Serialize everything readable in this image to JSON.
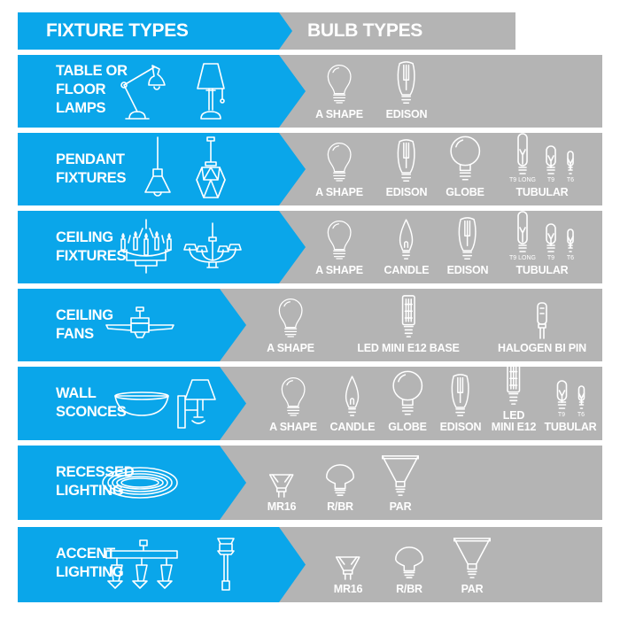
{
  "header": {
    "fixture_types": "FIXTURE TYPES",
    "bulb_types": "BULB TYPES"
  },
  "colors": {
    "fixture_blue": "#0aa6ea",
    "bulb_gray": "#b4b4b4"
  },
  "rows": [
    {
      "label": "TABLE OR FLOOR LAMPS",
      "fixture_icons": [
        "desk-lamp-icon",
        "floor-lamp-icon"
      ],
      "bulbs": [
        {
          "label": "A SHAPE",
          "icon": "a-shape"
        },
        {
          "label": "EDISON",
          "icon": "edison"
        }
      ]
    },
    {
      "label": "PENDANT FIXTURES",
      "fixture_icons": [
        "pendant-icon",
        "geometric-pendant-icon"
      ],
      "bulbs": [
        {
          "label": "A SHAPE",
          "icon": "a-shape"
        },
        {
          "label": "EDISON",
          "icon": "edison"
        },
        {
          "label": "GLOBE",
          "icon": "globe"
        },
        {
          "label": "TUBULAR",
          "icon": "tubular",
          "variants": [
            "T9 LONG",
            "T9",
            "T6"
          ]
        }
      ]
    },
    {
      "label": "CEILING FIXTURES",
      "fixture_icons": [
        "candle-chandelier-icon",
        "chandelier-icon"
      ],
      "bulbs": [
        {
          "label": "A SHAPE",
          "icon": "a-shape"
        },
        {
          "label": "CANDLE",
          "icon": "candle"
        },
        {
          "label": "EDISON",
          "icon": "edison"
        },
        {
          "label": "TUBULAR",
          "icon": "tubular",
          "variants": [
            "T9 LONG",
            "T9",
            "T6"
          ]
        }
      ]
    },
    {
      "label": "CEILING FANS",
      "fixture_icons": [
        "ceiling-fan-icon"
      ],
      "bulbs": [
        {
          "label": "A SHAPE",
          "icon": "a-shape"
        },
        {
          "label": "LED MINI E12 BASE",
          "icon": "led"
        },
        {
          "label": "HALOGEN BI PIN",
          "icon": "halogen"
        }
      ]
    },
    {
      "label": "WALL SCONCES",
      "fixture_icons": [
        "bowl-sconce-icon",
        "wall-sconce-icon"
      ],
      "bulbs": [
        {
          "label": "A SHAPE",
          "icon": "a-shape"
        },
        {
          "label": "CANDLE",
          "icon": "candle"
        },
        {
          "label": "GLOBE",
          "icon": "globe"
        },
        {
          "label": "EDISON",
          "icon": "edison"
        },
        {
          "label": "LED MINI E12",
          "icon": "led"
        },
        {
          "label": "TUBULAR",
          "icon": "tubular",
          "variants": [
            "T9",
            "T6"
          ]
        }
      ]
    },
    {
      "label": "RECESSED LIGHTING",
      "fixture_icons": [
        "recessed-light-icon"
      ],
      "bulbs": [
        {
          "label": "MR16",
          "icon": "mr16"
        },
        {
          "label": "R/BR",
          "icon": "br"
        },
        {
          "label": "PAR",
          "icon": "par"
        }
      ]
    },
    {
      "label": "ACCENT LIGHTING",
      "fixture_icons": [
        "track-light-icon",
        "path-light-icon"
      ],
      "bulbs": [
        {
          "label": "MR16",
          "icon": "mr16"
        },
        {
          "label": "R/BR",
          "icon": "br"
        },
        {
          "label": "PAR",
          "icon": "par"
        }
      ]
    }
  ]
}
